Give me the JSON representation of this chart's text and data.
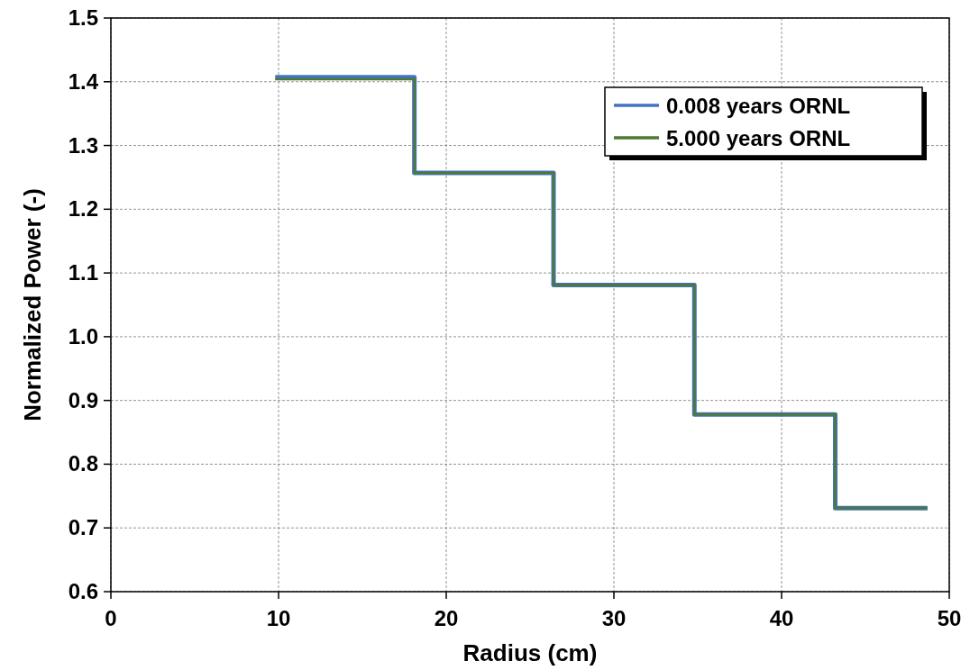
{
  "chart_data": {
    "type": "step",
    "xlabel": "Radius (cm)",
    "ylabel": "Normalized Power (-)",
    "x": [
      9.8,
      18.1,
      26.4,
      34.8,
      43.2,
      48.7
    ],
    "series": [
      {
        "name": "0.008 years ORNL",
        "color": "#4472c4",
        "values": [
          1.407,
          1.257,
          1.081,
          0.878,
          0.731,
          0.731
        ]
      },
      {
        "name": "5.000 years ORNL",
        "color": "#4e7a30",
        "values": [
          1.404,
          1.257,
          1.081,
          0.878,
          0.731,
          0.731
        ]
      }
    ],
    "xlim": [
      0,
      50
    ],
    "xticks": [
      0,
      10,
      20,
      30,
      40,
      50
    ],
    "ylim": [
      0.6,
      1.5
    ],
    "yticks": [
      {
        "value": 0.6,
        "label": "0.6"
      },
      {
        "value": 0.7,
        "label": "0.7"
      },
      {
        "value": 0.8,
        "label": "0.8"
      },
      {
        "value": 0.9,
        "label": "0.9"
      },
      {
        "value": 1.0,
        "label": "1.0"
      },
      {
        "value": 1.1,
        "label": "1.1"
      },
      {
        "value": 1.2,
        "label": "1.2"
      },
      {
        "value": 1.3,
        "label": "1.3"
      },
      {
        "value": 1.4,
        "label": "1.4"
      },
      {
        "value": 1.5,
        "label": "1.5"
      }
    ],
    "grid": true,
    "legend": "top right",
    "line_style": "solid"
  }
}
